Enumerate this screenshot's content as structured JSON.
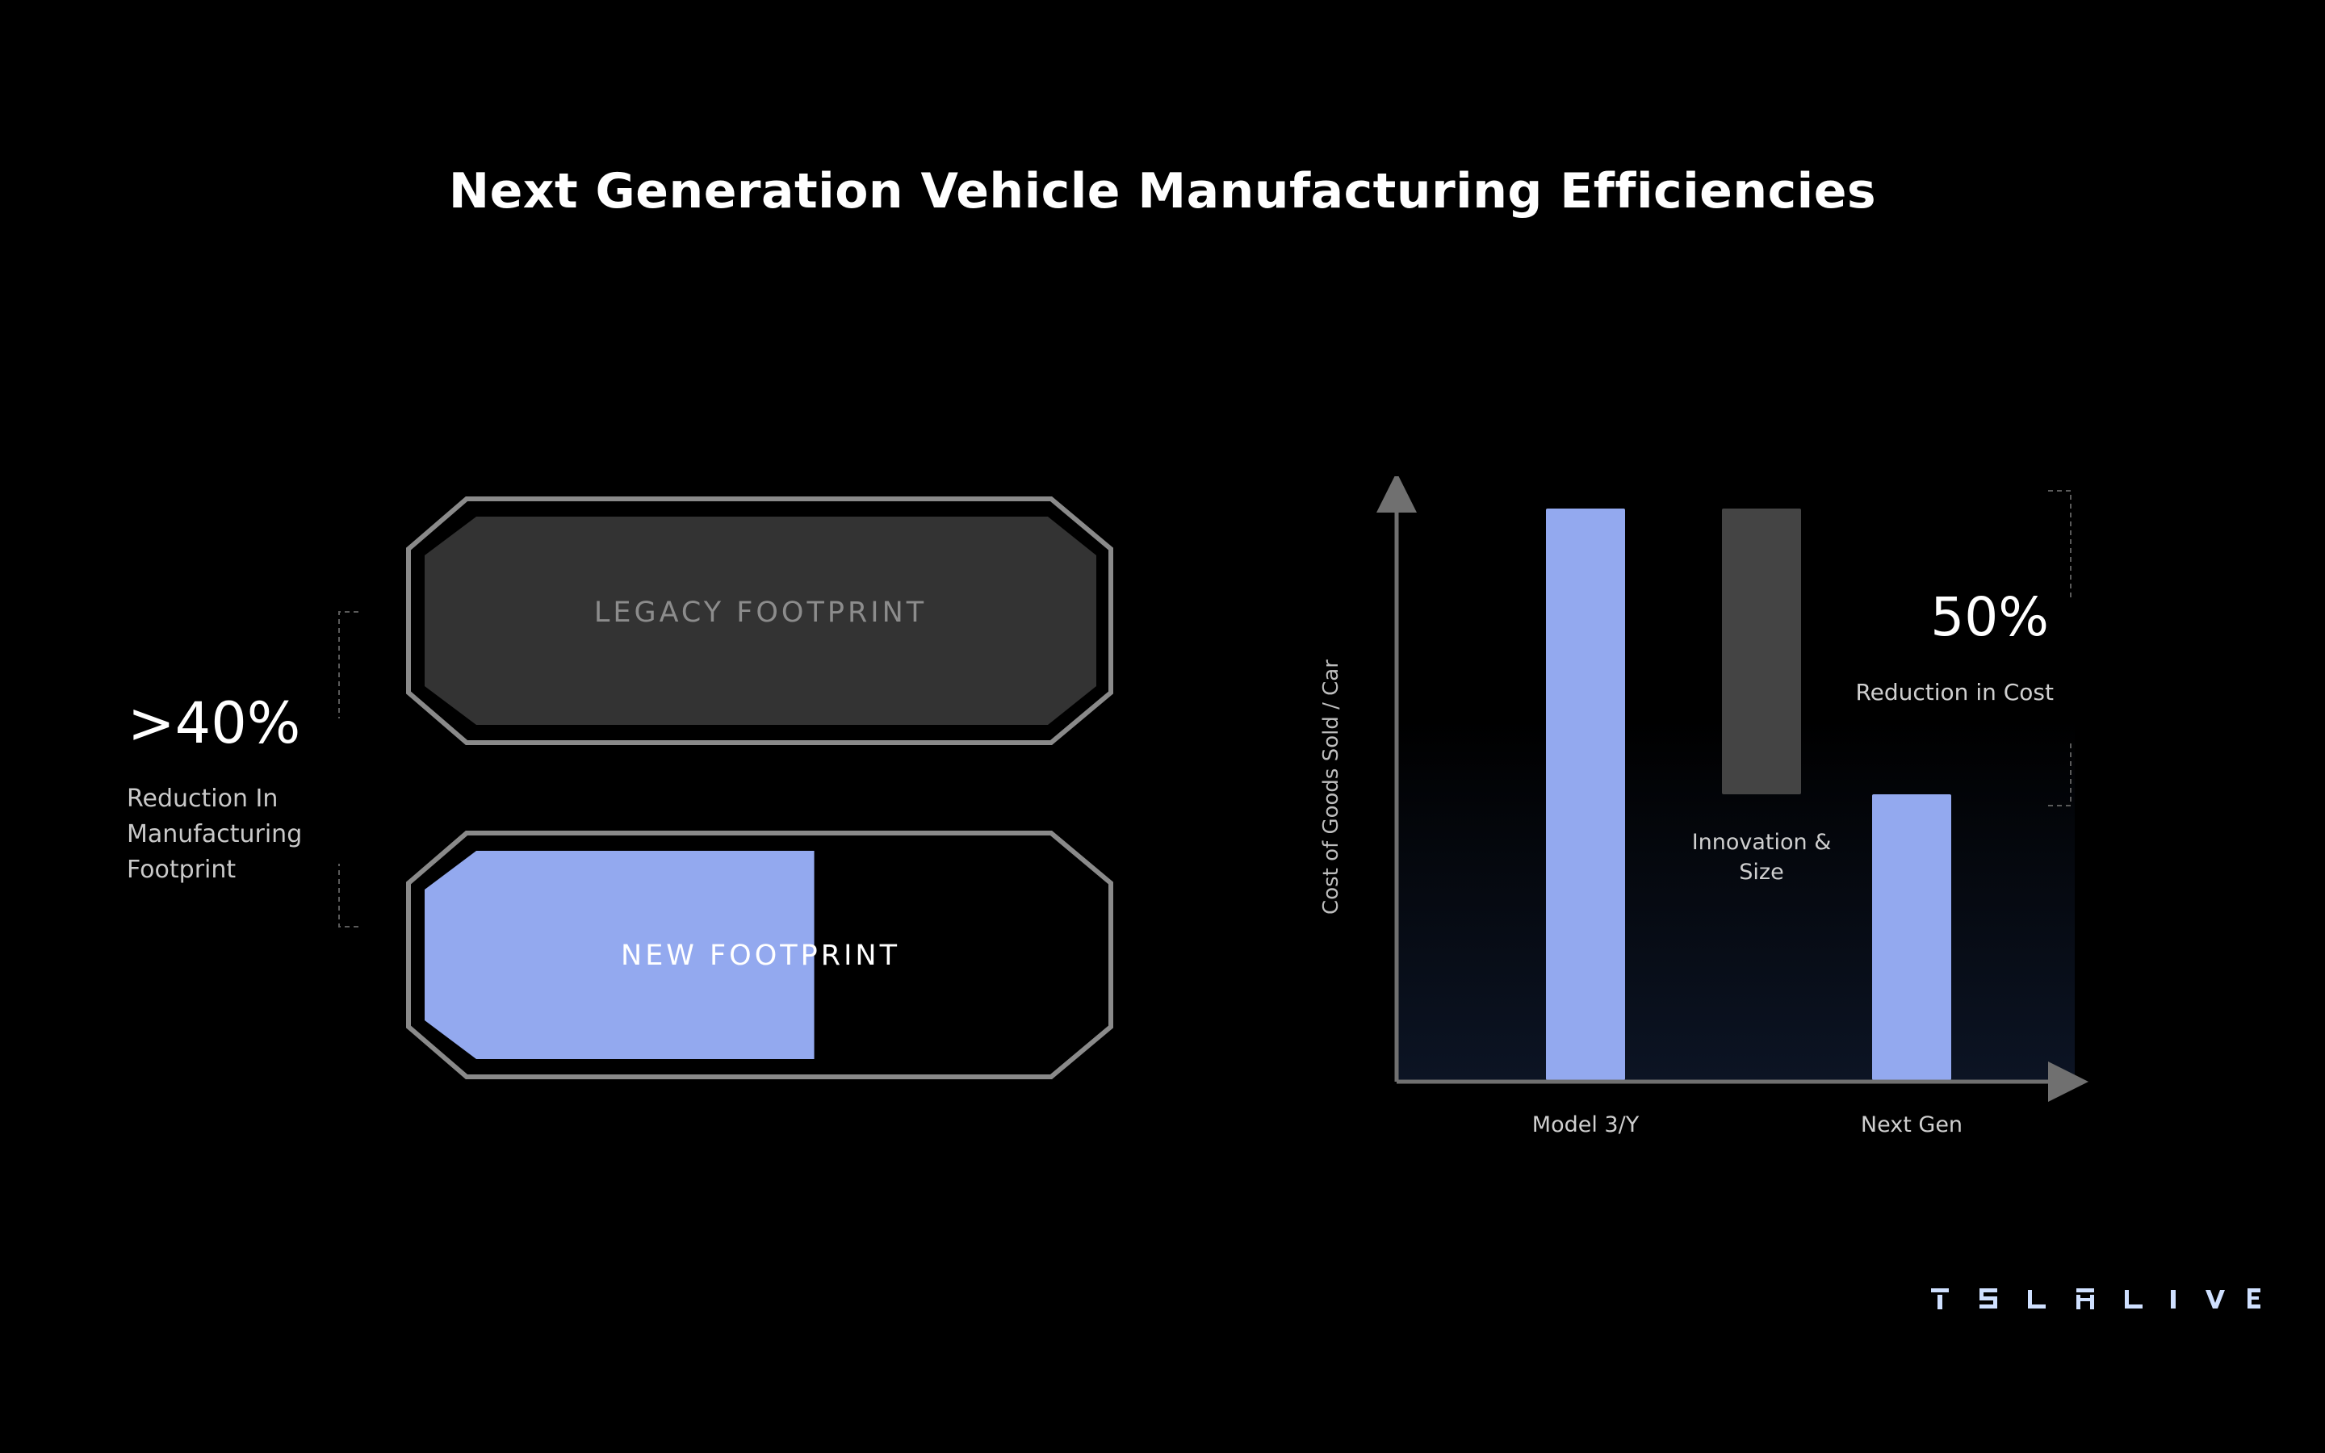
{
  "title": "Next Generation Vehicle Manufacturing Efficiencies",
  "left_stat": {
    "value": ">40%",
    "caption_lines": [
      "Reduction In",
      "Manufacturing",
      "Footprint"
    ]
  },
  "footprint": {
    "legacy_label": "LEGACY FOOTPRINT",
    "new_label": "NEW FOOTPRINT",
    "new_fraction": 0.58,
    "colors": {
      "legacy_fill": "#333333",
      "new_fill": "#93a9ef",
      "outline": "#8a8a8a"
    }
  },
  "chart_data": {
    "type": "bar",
    "title": "",
    "ylabel": "Cost of Goods Sold / Car",
    "xlabel": "",
    "categories": [
      "Model 3/Y",
      "Innovation & Size",
      "Next Gen"
    ],
    "bars": [
      {
        "category": "Model 3/Y",
        "base": 0,
        "top": 100,
        "color": "#93a9ef",
        "kind": "total"
      },
      {
        "category": "Innovation & Size",
        "base": 50,
        "top": 100,
        "color": "#444444",
        "kind": "change"
      },
      {
        "category": "Next Gen",
        "base": 0,
        "top": 50,
        "color": "#93a9ef",
        "kind": "total"
      }
    ],
    "category_label_lines": [
      [
        "Model 3/Y"
      ],
      [
        "Innovation &",
        "Size"
      ],
      [
        "Next Gen"
      ]
    ],
    "ylim": [
      0,
      100
    ],
    "grid": false,
    "annotation": {
      "value": "50%",
      "caption": "Reduction in Cost"
    }
  },
  "brand": {
    "logo_text": "TESLA LIVE",
    "color": "#cfe0ff"
  }
}
